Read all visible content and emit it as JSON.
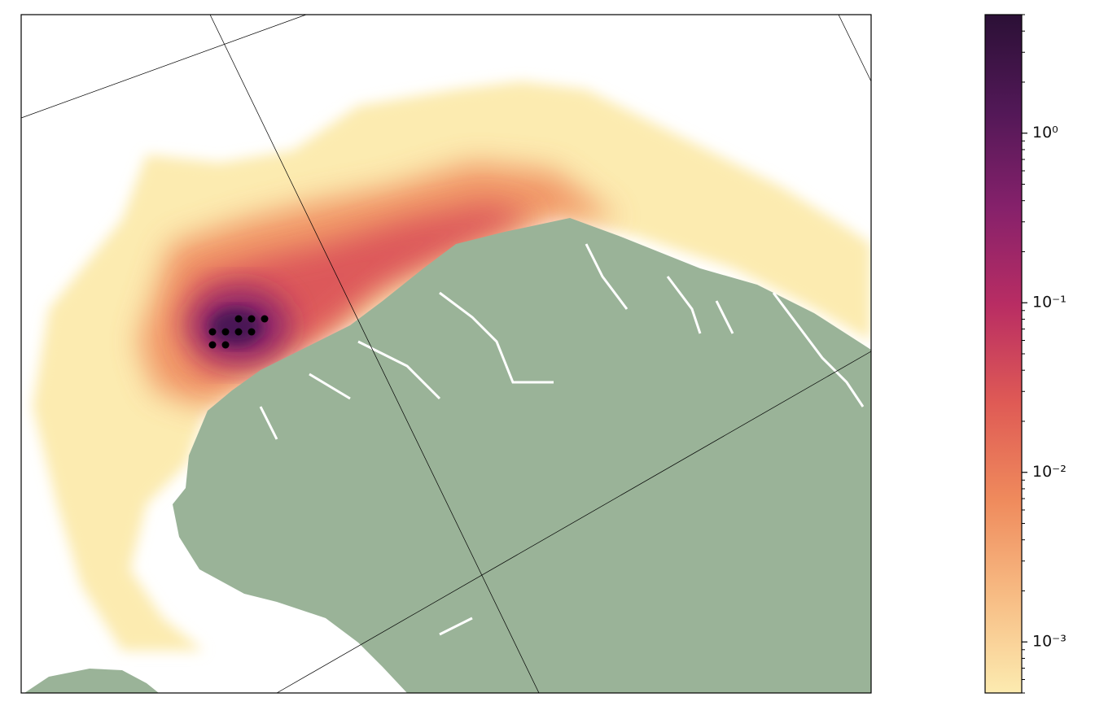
{
  "colorbar": {
    "scale": "log",
    "clim": [
      0.0005,
      5
    ],
    "ticks": [
      {
        "value": 1,
        "label": "10⁰"
      },
      {
        "value": 0.1,
        "label": "10⁻¹"
      },
      {
        "value": 0.01,
        "label": "10⁻²"
      },
      {
        "value": 0.001,
        "label": "10⁻³"
      }
    ],
    "colormap": [
      "#fcebb0",
      "#f7bc84",
      "#ef8a5c",
      "#df5a55",
      "#b92d63",
      "#86216b",
      "#521857",
      "#2b1036"
    ]
  }
}
